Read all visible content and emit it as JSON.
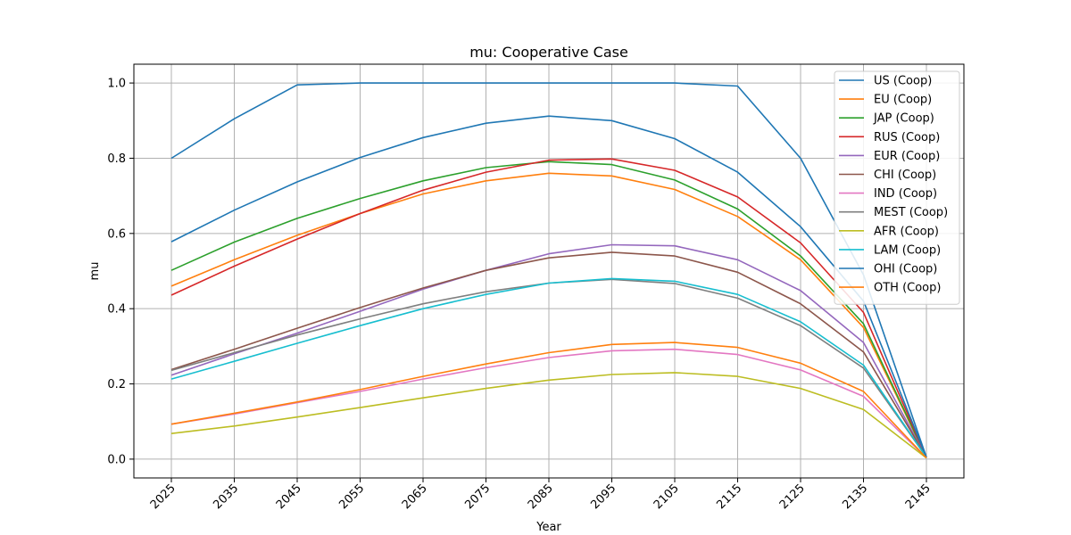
{
  "chart_data": {
    "type": "line",
    "title": "mu: Cooperative Case",
    "xlabel": "Year",
    "ylabel": "mu",
    "x": [
      2025,
      2035,
      2045,
      2055,
      2065,
      2075,
      2085,
      2095,
      2105,
      2115,
      2125,
      2135,
      2145
    ],
    "xlim": [
      2025,
      2145
    ],
    "ylim": [
      -0.05,
      1.05
    ],
    "yticks": [
      0.0,
      0.2,
      0.4,
      0.6,
      0.8,
      1.0
    ],
    "ytick_labels": [
      "0.0",
      "0.2",
      "0.4",
      "0.6",
      "0.8",
      "1.0"
    ],
    "xtick_labels": [
      "2025",
      "2035",
      "2045",
      "2055",
      "2065",
      "2075",
      "2085",
      "2095",
      "2105",
      "2115",
      "2125",
      "2135",
      "2145"
    ],
    "grid": true,
    "legend_position": "top-right",
    "series": [
      {
        "name": "US (Coop)",
        "color": "#1f77b4",
        "values": [
          0.8,
          0.905,
          0.995,
          1.0,
          1.0,
          1.0,
          1.0,
          1.0,
          1.0,
          0.992,
          0.8,
          0.49,
          0.005
        ]
      },
      {
        "name": "EU (Coop)",
        "color": "#ff7f0e",
        "values": [
          0.46,
          0.53,
          0.595,
          0.653,
          0.705,
          0.74,
          0.76,
          0.753,
          0.717,
          0.645,
          0.53,
          0.35,
          0.005
        ]
      },
      {
        "name": "JAP (Coop)",
        "color": "#2ca02c",
        "values": [
          0.502,
          0.577,
          0.64,
          0.693,
          0.74,
          0.775,
          0.791,
          0.783,
          0.742,
          0.665,
          0.54,
          0.36,
          0.005
        ]
      },
      {
        "name": "RUS (Coop)",
        "color": "#d62728",
        "values": [
          0.436,
          0.513,
          0.585,
          0.653,
          0.715,
          0.763,
          0.795,
          0.798,
          0.768,
          0.697,
          0.575,
          0.39,
          0.005
        ]
      },
      {
        "name": "EUR (Coop)",
        "color": "#9467bd",
        "values": [
          0.223,
          0.28,
          0.335,
          0.393,
          0.452,
          0.502,
          0.546,
          0.57,
          0.567,
          0.53,
          0.448,
          0.31,
          0.005
        ]
      },
      {
        "name": "CHI (Coop)",
        "color": "#8c564b",
        "values": [
          0.238,
          0.292,
          0.348,
          0.403,
          0.455,
          0.502,
          0.535,
          0.55,
          0.54,
          0.497,
          0.413,
          0.285,
          0.005
        ]
      },
      {
        "name": "IND (Coop)",
        "color": "#e377c2",
        "values": [
          0.093,
          0.12,
          0.15,
          0.18,
          0.213,
          0.243,
          0.27,
          0.288,
          0.292,
          0.278,
          0.237,
          0.167,
          0.003
        ]
      },
      {
        "name": "MEST (Coop)",
        "color": "#7f7f7f",
        "values": [
          0.236,
          0.283,
          0.33,
          0.373,
          0.413,
          0.445,
          0.468,
          0.478,
          0.467,
          0.428,
          0.355,
          0.242,
          0.005
        ]
      },
      {
        "name": "AFR (Coop)",
        "color": "#bcbd22",
        "values": [
          0.068,
          0.088,
          0.112,
          0.137,
          0.163,
          0.188,
          0.21,
          0.225,
          0.23,
          0.22,
          0.188,
          0.132,
          0.003
        ]
      },
      {
        "name": "LAM (Coop)",
        "color": "#17becf",
        "values": [
          0.213,
          0.26,
          0.308,
          0.355,
          0.4,
          0.438,
          0.468,
          0.48,
          0.473,
          0.438,
          0.365,
          0.25,
          0.005
        ]
      },
      {
        "name": "OHI (Coop)",
        "color": "#1f77b4",
        "values": [
          0.578,
          0.662,
          0.737,
          0.802,
          0.855,
          0.893,
          0.912,
          0.9,
          0.852,
          0.763,
          0.618,
          0.42,
          0.005
        ]
      },
      {
        "name": "OTH (Coop)",
        "color": "#ff7f0e",
        "values": [
          0.093,
          0.122,
          0.152,
          0.185,
          0.22,
          0.253,
          0.283,
          0.305,
          0.31,
          0.297,
          0.255,
          0.18,
          0.003
        ]
      }
    ]
  }
}
